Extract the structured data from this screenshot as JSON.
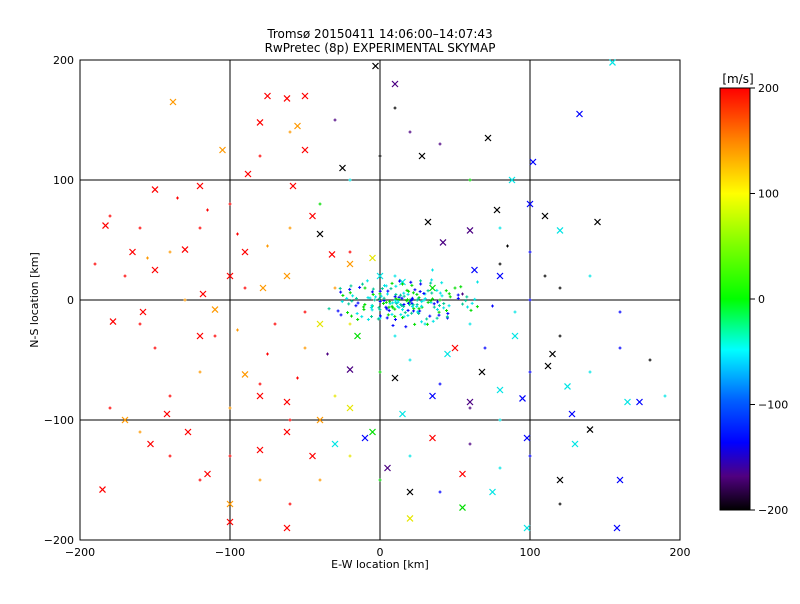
{
  "chart_data": {
    "type": "scatter",
    "title": "Tromsø 20150411 14:06:00–14:07:43",
    "subtitle": "RwPretec (8p) EXPERIMENTAL SKYMAP",
    "xlabel": "E-W location [km]",
    "ylabel": "N-S location [km]",
    "xlim": [
      -200,
      200
    ],
    "ylim": [
      -200,
      200
    ],
    "xticks": [
      "−200",
      "−100",
      "0",
      "100",
      "200"
    ],
    "yticks": [
      "200",
      "100",
      "0",
      "−100",
      "−200"
    ],
    "grid": true,
    "colorbar": {
      "label": "[m/s]",
      "range": [
        -200,
        200
      ],
      "ticks": [
        "200",
        "100",
        "0",
        "−100",
        "−200"
      ]
    },
    "series": [
      {
        "marker": "x",
        "points": [
          [
            -138,
            165
          ],
          [
            -80,
            148
          ],
          [
            -75,
            170
          ],
          [
            -62,
            168
          ],
          [
            -55,
            145
          ],
          [
            -50,
            125
          ],
          [
            -3,
            195
          ],
          [
            10,
            180
          ],
          [
            -25,
            110
          ],
          [
            -45,
            70
          ],
          [
            -32,
            38
          ],
          [
            -20,
            30
          ],
          [
            -5,
            35
          ],
          [
            0,
            20
          ],
          [
            15,
            15
          ],
          [
            35,
            10
          ],
          [
            42,
            48
          ],
          [
            32,
            65
          ],
          [
            63,
            25
          ],
          [
            78,
            75
          ],
          [
            88,
            100
          ],
          [
            100,
            80
          ],
          [
            110,
            70
          ],
          [
            120,
            58
          ],
          [
            133,
            155
          ],
          [
            145,
            65
          ],
          [
            155,
            198
          ],
          [
            102,
            115
          ],
          [
            72,
            135
          ],
          [
            -183,
            62
          ],
          [
            -150,
            92
          ],
          [
            -120,
            95
          ],
          [
            -105,
            125
          ],
          [
            -88,
            105
          ],
          [
            -58,
            95
          ],
          [
            -40,
            55
          ],
          [
            -62,
            20
          ],
          [
            -150,
            25
          ],
          [
            -118,
            5
          ],
          [
            -100,
            20
          ],
          [
            -78,
            10
          ],
          [
            -178,
            -18
          ],
          [
            -158,
            -10
          ],
          [
            -120,
            -30
          ],
          [
            -90,
            -62
          ],
          [
            -80,
            -80
          ],
          [
            -62,
            -110
          ],
          [
            -40,
            -100
          ],
          [
            -20,
            -90
          ],
          [
            -5,
            -110
          ],
          [
            15,
            -95
          ],
          [
            35,
            -80
          ],
          [
            60,
            -85
          ],
          [
            80,
            -75
          ],
          [
            95,
            -82
          ],
          [
            112,
            -55
          ],
          [
            125,
            -72
          ],
          [
            128,
            -95
          ],
          [
            140,
            -108
          ],
          [
            165,
            -85
          ],
          [
            173,
            -85
          ],
          [
            -142,
            -95
          ],
          [
            -128,
            -110
          ],
          [
            -115,
            -145
          ],
          [
            -100,
            -170
          ],
          [
            -80,
            -125
          ],
          [
            -62,
            -85
          ],
          [
            -45,
            -130
          ],
          [
            -30,
            -120
          ],
          [
            -10,
            -115
          ],
          [
            5,
            -140
          ],
          [
            20,
            -160
          ],
          [
            35,
            -115
          ],
          [
            55,
            -145
          ],
          [
            75,
            -160
          ],
          [
            98,
            -115
          ],
          [
            120,
            -150
          ],
          [
            130,
            -120
          ],
          [
            160,
            -150
          ],
          [
            -153,
            -120
          ],
          [
            -170,
            -100
          ],
          [
            -185,
            -158
          ],
          [
            -100,
            -185
          ],
          [
            -62,
            -190
          ],
          [
            20,
            -182
          ],
          [
            55,
            -173
          ],
          [
            98,
            -190
          ],
          [
            158,
            -190
          ],
          [
            -20,
            -58
          ],
          [
            10,
            -65
          ],
          [
            50,
            -40
          ],
          [
            68,
            -60
          ],
          [
            90,
            -30
          ],
          [
            -40,
            -20
          ],
          [
            -15,
            -30
          ],
          [
            45,
            -45
          ],
          [
            80,
            20
          ],
          [
            60,
            58
          ],
          [
            28,
            120
          ],
          [
            -50,
            170
          ],
          [
            115,
            -45
          ],
          [
            -165,
            40
          ],
          [
            -130,
            42
          ],
          [
            -90,
            40
          ],
          [
            -110,
            -8
          ]
        ]
      },
      {
        "marker": "+",
        "points": [
          [
            -60,
            60
          ],
          [
            -20,
            40
          ],
          [
            10,
            20
          ],
          [
            20,
            0
          ],
          [
            25,
            -10
          ],
          [
            30,
            5
          ],
          [
            -5,
            -5
          ],
          [
            15,
            -8
          ],
          [
            5,
            5
          ],
          [
            -10,
            10
          ],
          [
            0,
            -15
          ],
          [
            30,
            -20
          ],
          [
            40,
            0
          ],
          [
            50,
            10
          ],
          [
            60,
            -20
          ],
          [
            70,
            -40
          ],
          [
            80,
            30
          ],
          [
            90,
            -10
          ],
          [
            100,
            0
          ],
          [
            110,
            20
          ],
          [
            -50,
            -40
          ],
          [
            -70,
            -20
          ],
          [
            -90,
            10
          ],
          [
            -110,
            -30
          ],
          [
            -130,
            0
          ],
          [
            -150,
            -40
          ],
          [
            -170,
            20
          ],
          [
            -80,
            -70
          ],
          [
            -100,
            -90
          ],
          [
            -60,
            -100
          ],
          [
            -30,
            -80
          ],
          [
            0,
            -60
          ],
          [
            20,
            -50
          ],
          [
            40,
            -70
          ],
          [
            60,
            -90
          ],
          [
            80,
            -100
          ],
          [
            100,
            -60
          ],
          [
            120,
            -30
          ],
          [
            140,
            -60
          ],
          [
            160,
            -40
          ],
          [
            -40,
            80
          ],
          [
            -20,
            100
          ],
          [
            0,
            120
          ],
          [
            20,
            140
          ],
          [
            -60,
            140
          ],
          [
            -80,
            120
          ],
          [
            -100,
            80
          ],
          [
            -120,
            60
          ],
          [
            -140,
            40
          ],
          [
            -160,
            60
          ],
          [
            -180,
            70
          ],
          [
            -190,
            30
          ],
          [
            -120,
            -60
          ],
          [
            -140,
            -80
          ],
          [
            -160,
            -20
          ],
          [
            -30,
            150
          ],
          [
            10,
            160
          ],
          [
            40,
            130
          ],
          [
            60,
            100
          ],
          [
            80,
            60
          ],
          [
            100,
            40
          ],
          [
            120,
            10
          ],
          [
            140,
            20
          ],
          [
            160,
            -10
          ],
          [
            180,
            -50
          ],
          [
            190,
            -80
          ],
          [
            -20,
            -130
          ],
          [
            0,
            -150
          ],
          [
            20,
            -130
          ],
          [
            40,
            -160
          ],
          [
            60,
            -120
          ],
          [
            80,
            -140
          ],
          [
            100,
            -130
          ],
          [
            120,
            -170
          ],
          [
            -40,
            -150
          ],
          [
            -60,
            -170
          ],
          [
            -80,
            -150
          ],
          [
            -100,
            -130
          ],
          [
            -120,
            -150
          ],
          [
            -140,
            -130
          ],
          [
            -160,
            -110
          ],
          [
            -180,
            -90
          ],
          [
            -50,
            -10
          ],
          [
            -30,
            10
          ],
          [
            -20,
            -20
          ],
          [
            10,
            -30
          ],
          [
            35,
            25
          ],
          [
            45,
            -15
          ],
          [
            55,
            5
          ],
          [
            65,
            15
          ],
          [
            75,
            -5
          ],
          [
            85,
            45
          ],
          [
            -75,
            45
          ],
          [
            -95,
            55
          ],
          [
            -115,
            75
          ],
          [
            -135,
            85
          ],
          [
            -155,
            35
          ],
          [
            -35,
            -45
          ],
          [
            -55,
            -65
          ],
          [
            -75,
            -45
          ],
          [
            -95,
            -25
          ],
          [
            12,
            -2
          ],
          [
            18,
            8
          ],
          [
            22,
            -4
          ],
          [
            8,
            -12
          ],
          [
            28,
            -6
          ],
          [
            -8,
            2
          ],
          [
            3,
            12
          ],
          [
            26,
            2
          ],
          [
            16,
            -14
          ],
          [
            34,
            -2
          ],
          [
            6,
            -6
          ]
        ]
      }
    ],
    "colors": {
      "red": "#ff0000",
      "orange": "#ff9900",
      "yellow": "#e6e600",
      "green": "#00dd00",
      "cyan": "#00e5e5",
      "blue": "#0000ff",
      "indigo": "#4b0082",
      "black": "#000000"
    }
  }
}
